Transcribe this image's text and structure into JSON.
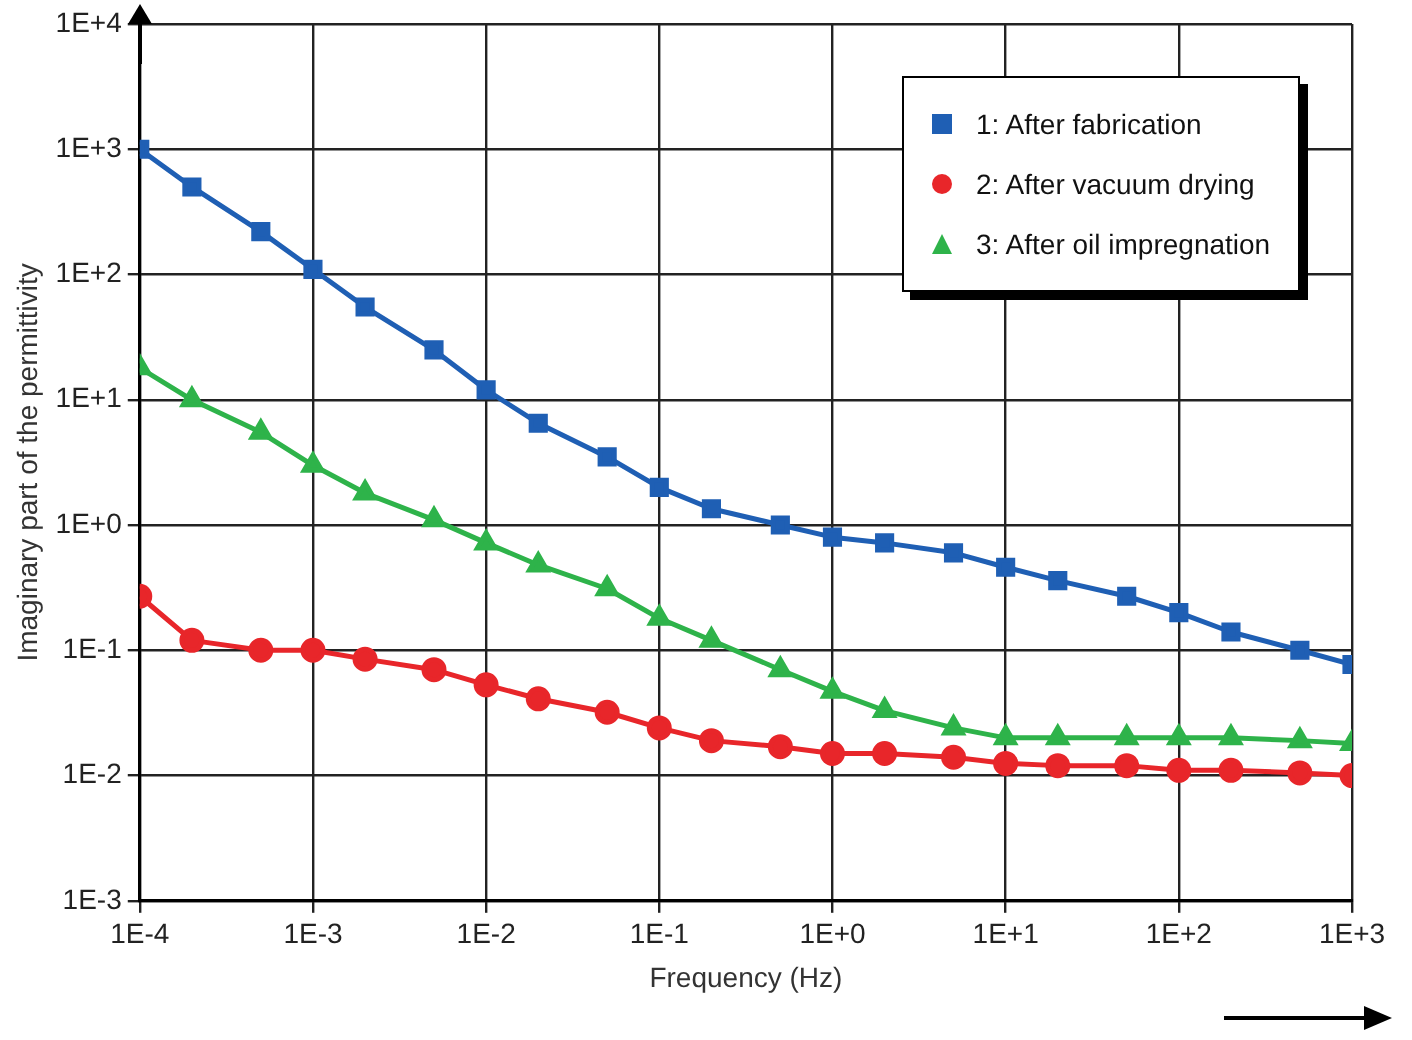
{
  "chart_data": {
    "type": "line",
    "xlabel": "Frequency (Hz)",
    "ylabel": "Imaginary part of the permittivity",
    "log": "xy",
    "grid": true,
    "legend": "top right",
    "line_style": "solid",
    "x": [
      0.0001,
      0.0002,
      0.0005,
      0.001,
      0.002,
      0.005,
      0.01,
      0.02,
      0.05,
      0.1,
      0.2,
      0.5,
      1,
      2,
      5,
      10,
      20,
      50,
      100,
      200,
      500,
      1000
    ],
    "xlim": [
      0.0001,
      1000
    ],
    "ylim": [
      0.001,
      10000
    ],
    "xticks": [
      {
        "value": 0.0001,
        "label": "1E-4"
      },
      {
        "value": 0.001,
        "label": "1E-3"
      },
      {
        "value": 0.01,
        "label": "1E-2"
      },
      {
        "value": 0.1,
        "label": "1E-1"
      },
      {
        "value": 1,
        "label": "1E+0"
      },
      {
        "value": 10,
        "label": "1E+1"
      },
      {
        "value": 100,
        "label": "1E+2"
      },
      {
        "value": 1000,
        "label": "1E+3"
      }
    ],
    "yticks": [
      {
        "value": 0.001,
        "label": "1E-3"
      },
      {
        "value": 0.01,
        "label": "1E-2"
      },
      {
        "value": 0.1,
        "label": "1E-1"
      },
      {
        "value": 1,
        "label": "1E+0"
      },
      {
        "value": 10,
        "label": "1E+1"
      },
      {
        "value": 100,
        "label": "1E+2"
      },
      {
        "value": 1000,
        "label": "1E+3"
      },
      {
        "value": 10000,
        "label": "1E+4"
      }
    ],
    "series": [
      {
        "name": "1: After fabrication",
        "color": "#1f5fb4",
        "marker": "square",
        "values": [
          1000,
          500,
          220,
          110,
          55,
          25,
          12,
          6.5,
          3.5,
          2,
          1.35,
          1,
          0.8,
          0.72,
          0.6,
          0.46,
          0.36,
          0.27,
          0.2,
          0.14,
          0.1,
          0.077
        ]
      },
      {
        "name": "2: After vacuum drying",
        "color": "#e8262a",
        "marker": "circle",
        "values": [
          0.27,
          0.12,
          0.1,
          0.1,
          0.085,
          0.07,
          0.053,
          0.041,
          0.032,
          0.024,
          0.019,
          0.017,
          0.015,
          0.015,
          0.014,
          0.0125,
          0.012,
          0.012,
          0.011,
          0.011,
          0.0105,
          0.01
        ]
      },
      {
        "name": "3: After oil impregnation",
        "color": "#2eb34a",
        "marker": "triangle",
        "values": [
          18,
          10,
          5.5,
          3,
          1.8,
          1.1,
          0.72,
          0.48,
          0.31,
          0.18,
          0.12,
          0.07,
          0.047,
          0.033,
          0.024,
          0.02,
          0.02,
          0.02,
          0.02,
          0.02,
          0.019,
          0.018
        ]
      }
    ]
  }
}
